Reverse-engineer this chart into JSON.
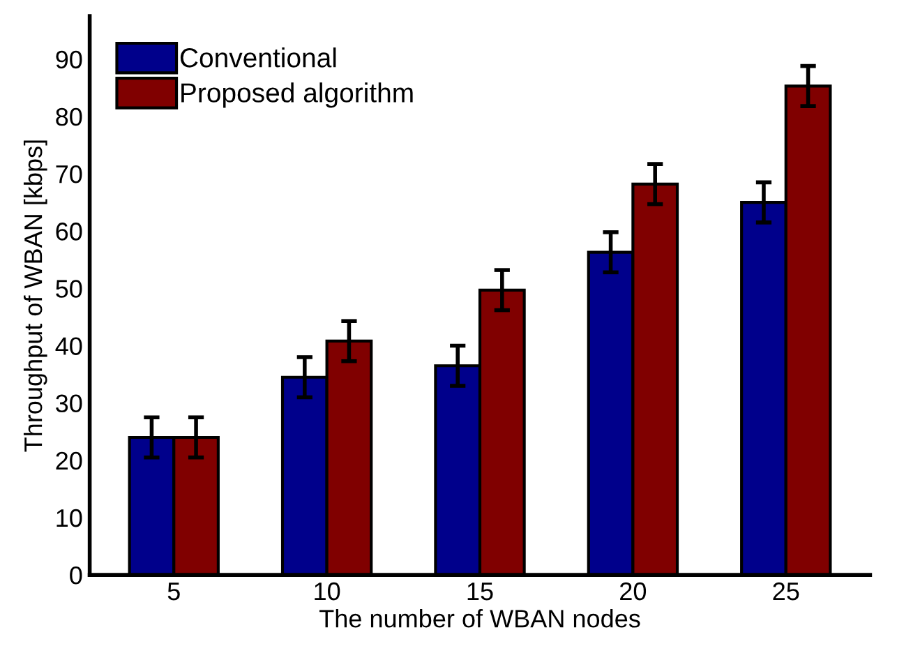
{
  "chart_data": {
    "type": "bar",
    "xlabel": "The number of WBAN nodes",
    "ylabel": "Throughput of WBAN [kbps]",
    "categories": [
      "5",
      "10",
      "15",
      "20",
      "25"
    ],
    "series": [
      {
        "name": "Conventional",
        "color": "#00008b",
        "values": [
          24,
          34.5,
          36.5,
          56.3,
          65
        ],
        "errors": [
          3.5,
          3.5,
          3.5,
          3.5,
          3.5
        ]
      },
      {
        "name": "Proposed algorithm",
        "color": "#800000",
        "values": [
          24,
          40.8,
          49.7,
          68.2,
          85.3
        ],
        "errors": [
          3.5,
          3.5,
          3.5,
          3.5,
          3.5
        ]
      }
    ],
    "ylim": [
      0,
      97.5
    ],
    "yticks": [
      0,
      10,
      20,
      30,
      40,
      50,
      60,
      70,
      80,
      90
    ],
    "legend": "top left",
    "grid": false
  }
}
